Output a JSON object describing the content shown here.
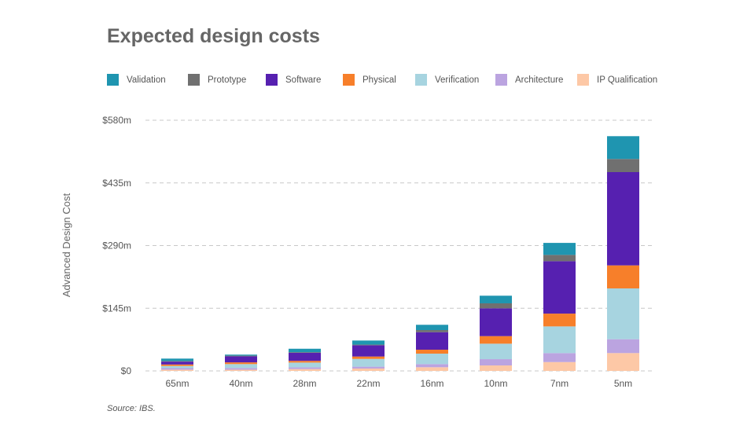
{
  "title": "Expected design costs",
  "source": "Source: IBS.",
  "chart_data": {
    "type": "bar",
    "stacked": true,
    "ylabel": "Advanced Design Cost",
    "xlabel": "",
    "ylim": [
      0,
      580
    ],
    "yticks": [
      "$0",
      "$145m",
      "$290m",
      "$435m",
      "$580m"
    ],
    "ytick_values": [
      0,
      145,
      290,
      435,
      580
    ],
    "grid": true,
    "legend": "top",
    "categories": [
      "65nm",
      "40nm",
      "28nm",
      "22nm",
      "16nm",
      "10nm",
      "7nm",
      "5nm"
    ],
    "series": [
      {
        "name": "IP Qualification",
        "color": "#fdc8a6",
        "values": [
          2.9,
          2.8,
          4.3,
          5.5,
          8.5,
          12.7,
          20.5,
          41.3
        ]
      },
      {
        "name": "Architecture",
        "color": "#bba4e0",
        "values": [
          3.5,
          4.0,
          4.0,
          4.3,
          7.3,
          14.5,
          20.7,
          32.0
        ]
      },
      {
        "name": "Verification",
        "color": "#a7d4e0",
        "values": [
          5.0,
          9.0,
          11.0,
          18.0,
          24.2,
          35.8,
          61.8,
          117.6
        ]
      },
      {
        "name": "Physical",
        "color": "#f77f2a",
        "values": [
          3.5,
          4.0,
          4.0,
          5.5,
          9.1,
          17.5,
          29.6,
          53.3
        ]
      },
      {
        "name": "Software",
        "color": "#5620b0",
        "values": [
          6.6,
          14.0,
          18.5,
          26.0,
          40.5,
          64.4,
          121.3,
          215.8
        ]
      },
      {
        "name": "Prototype",
        "color": "#707070",
        "values": [
          1.5,
          1.5,
          1.5,
          1.5,
          4.9,
          11.5,
          14.5,
          30.4
        ]
      },
      {
        "name": "Validation",
        "color": "#1f95b0",
        "values": [
          5.5,
          2.4,
          8.0,
          9.5,
          12.2,
          17.6,
          27.8,
          52.7
        ]
      }
    ],
    "legend_order": [
      "Validation",
      "Prototype",
      "Software",
      "Physical",
      "Verification",
      "Architecture",
      "IP Qualification"
    ]
  }
}
